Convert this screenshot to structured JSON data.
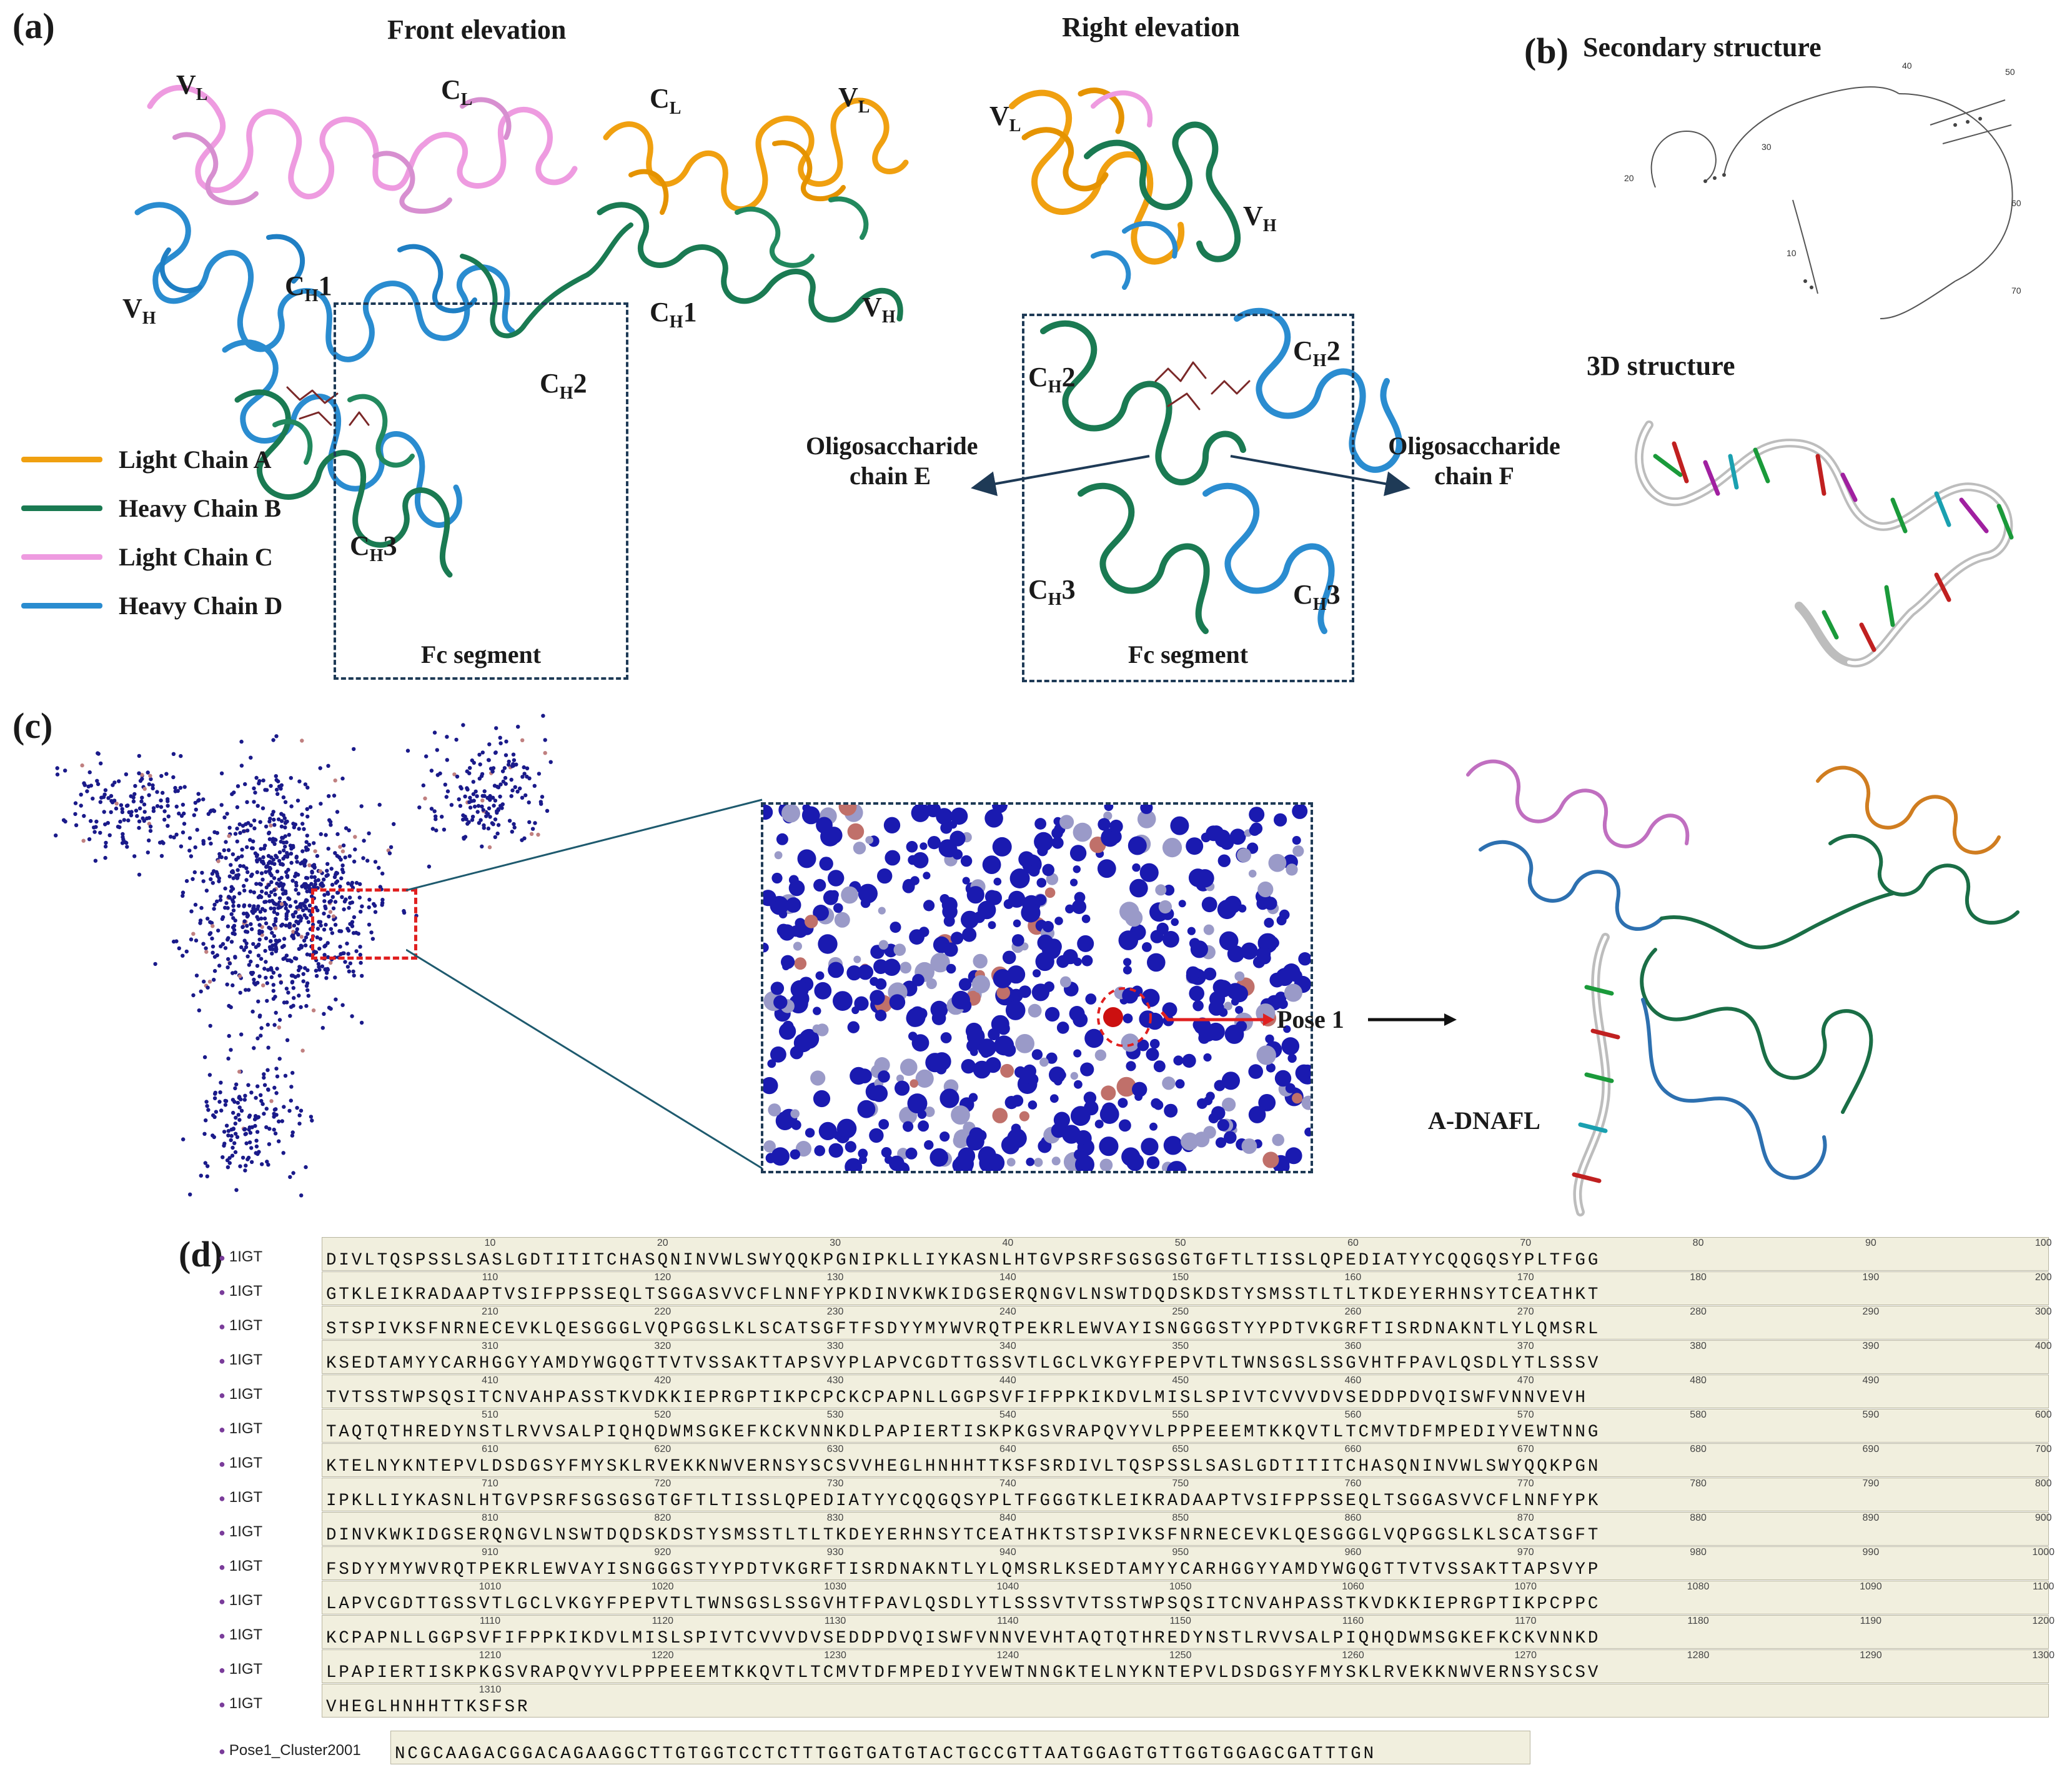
{
  "panel_labels": {
    "a": "(a)",
    "b": "(b)",
    "c": "(c)",
    "d": "(d)"
  },
  "panel_a": {
    "front_title": "Front elevation",
    "right_title": "Right elevation",
    "fc_label": "Fc segment",
    "oligo_e": "Oligosaccharide\nchain E",
    "oligo_f": "Oligosaccharide\nchain F",
    "legend": [
      {
        "label": "Light Chain A",
        "color": "#f0a010"
      },
      {
        "label": "Heavy Chain B",
        "color": "#1a7a52"
      },
      {
        "label": "Light Chain C",
        "color": "#ee9be0"
      },
      {
        "label": "Heavy Chain D",
        "color": "#2a8cd0"
      }
    ],
    "domains": {
      "vl": "V",
      "vl_sub": "L",
      "cl": "C",
      "cl_sub": "L",
      "vh": "V",
      "vh_sub": "H",
      "ch1": "C",
      "ch1_sub": "H",
      "ch1_suffix": "1",
      "ch2_suffix": "2",
      "ch3_suffix": "3"
    }
  },
  "panel_b": {
    "secondary_title": "Secondary  structure",
    "structure_title": "3D  structure",
    "position_labels": [
      "20",
      "30",
      "40",
      "50",
      "60",
      "70",
      "10"
    ]
  },
  "panel_c": {
    "pose_label": "Pose 1",
    "complex_label": "A-DNAFL"
  },
  "panel_d": {
    "rows": [
      {
        "name": "1IGT",
        "start": 10,
        "seq": "DIVLTQSPSSLSASLGDTITITCHASQNINVWLSWYQQKPGNIPKLLIYKASNLHTGVPSRFSGSGSGTGFTLTISSLQPEDIATYYCQQGQSYPLTFGG"
      },
      {
        "name": "1IGT",
        "start": 110,
        "seq": "GTKLEIKRADAAPTVSIFPPSSEQLTSGGASVVCFLNNFYPKDINVKWKIDGSERQNGVLNSWTDQDSKDSTYSMSSTLTLTKDEYERHNSYTCEATHKT"
      },
      {
        "name": "1IGT",
        "start": 210,
        "seq": "STSPIVKSFNRNECEVKLQESGGGLVQPGGSLKLSCATSGFTFSDYYMYWVRQTPEKRLEWVAYISNGGGSTYYPDTVKGRFTISRDNAKNTLYLQMSRL"
      },
      {
        "name": "1IGT",
        "start": 310,
        "seq": "KSEDTAMYYCARHGGYYAMDYWGQGTTVTVSSAKTTAPSVYPLAPVCGDTTGSSVTLGCLVKGYFPEPVTLTWNSGSLSSGVHTFPAVLQSDLYTLSSSV"
      },
      {
        "name": "1IGT",
        "start": 410,
        "seq": "TVTSSTWPSQSITCNVAHPASSTKVDKKIEPRGPTIKPCPCKCPAPNLLGGPSVFIFPPKIKDVLMISLSPIVTCVVVDVSEDDPDVQISWFVNNVEVH"
      },
      {
        "name": "1IGT",
        "start": 510,
        "seq": "TAQTQTHREDYNSTLRVVSALPIQHQDWMSGKEFKCKVNNKDLPAPIERTISKPKGSVRAPQVYVLPPPEEEMTKKQVTLTCMVTDFMPEDIYVEWTNNG"
      },
      {
        "name": "1IGT",
        "start": 610,
        "seq": "KTELNYKNTEPVLDSDGSYFMYSKLRVEKKNWVERNSYSCSVVHEGLHNHHTTKSFSRDIVLTQSPSSLSASLGDTITITCHASQNINVWLSWYQQKPGN"
      },
      {
        "name": "1IGT",
        "start": 710,
        "seq": "IPKLLIYKASNLHTGVPSRFSGSGSGTGFTLTISSLQPEDIATYYCQQGQSYPLTFGGGTKLEIKRADAAPTVSIFPPSSEQLTSGGASVVCFLNNFYPK"
      },
      {
        "name": "1IGT",
        "start": 810,
        "seq": "DINVKWKIDGSERQNGVLNSWTDQDSKDSTYSMSSTLTLTKDEYERHNSYTCEATHKTSTSPIVKSFNRNECEVKLQESGGGLVQPGGSLKLSCATSGFT"
      },
      {
        "name": "1IGT",
        "start": 910,
        "seq": "FSDYYMYWVRQTPEKRLEWVAYISNGGGSTYYPDTVKGRFTISRDNAKNTLYLQMSRLKSEDTAMYYCARHGGYYAMDYWGQGTTVTVSSAKTTAPSVYP"
      },
      {
        "name": "1IGT",
        "start": 1010,
        "seq": "LAPVCGDTTGSSVTLGCLVKGYFPEPVTLTWNSGSLSSGVHTFPAVLQSDLYTLSSSVTVTSSTWPSQSITCNVAHPASSTKVDKKIEPRGPTIKPCPPC"
      },
      {
        "name": "1IGT",
        "start": 1110,
        "seq": "KCPAPNLLGGPSVFIFPPKIKDVLMISLSPIVTCVVVDVSEDDPDVQISWFVNNVEVHTAQTQTHREDYNSTLRVVSALPIQHQDWMSGKEFKCKVNNKD"
      },
      {
        "name": "1IGT",
        "start": 1210,
        "seq": "LPAPIERTISKPKGSVRAPQVYVLPPPEEEMTKKQVTLTCMVTDFMPEDIYVEWTNNGKTELNYKNTEPVLDSDGSYFMYSKLRVEKKNWVERNSYSCSV"
      },
      {
        "name": "1IGT",
        "start": 1310,
        "seq": "VHEGLHNHHTTKSFSR"
      }
    ],
    "pose_row": {
      "name": "Pose1_Cluster2001",
      "seq": "NCGCAAGACGGACAGAAGGCTTGTGGTCCTCTTTGGTGATGTACTGCCGTTAATGGAGTGTTGGTGGAGCGATTTGN"
    }
  }
}
